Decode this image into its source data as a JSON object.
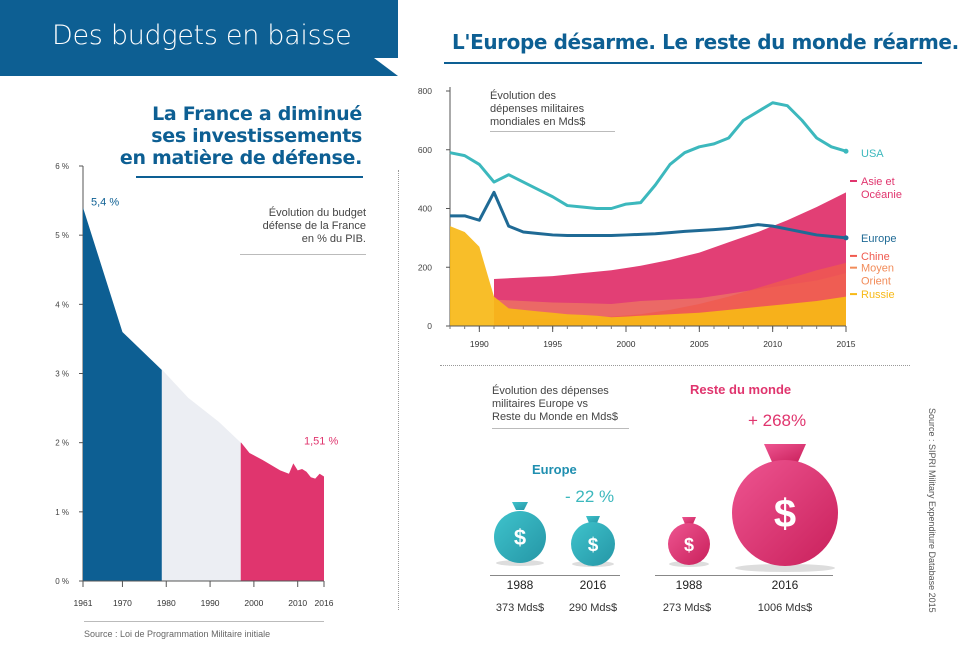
{
  "banner_title": "Des budgets en baisse",
  "headline_right": "L'Europe désarme. Le reste du monde réarme.",
  "headline_left": [
    "La France a diminué",
    "ses investissements",
    "en matière de défense."
  ],
  "colors": {
    "blue": "#0d5f93",
    "pink": "#e0356e",
    "usa": "#3cb8bd",
    "europe": "#1f6a95",
    "asia": "#e0356e",
    "china": "#f05a4f",
    "middle_east": "#f28c5a",
    "russia": "#f7b917"
  },
  "france_caption": [
    "Évolution du budget",
    "défense de la France",
    "en % du PIB."
  ],
  "france_source": "Source :  Loi de Programmation Militaire initiale",
  "world_caption": [
    "Évolution des",
    "dépenses militaires",
    "mondiales en Mds$"
  ],
  "europe_caption": [
    "Évolution des dépenses",
    "militaires Europe vs",
    "Reste du Monde en Mds$"
  ],
  "side_source": "Source : SIPRI Military Expenditure Database 2015",
  "bags": {
    "europe_title": "Europe",
    "rest_title": "Reste du monde",
    "europe_change": "- 22 %",
    "rest_change": "+ 268%",
    "items": [
      {
        "year": "1988",
        "value": "373 Mds$",
        "group": "europe"
      },
      {
        "year": "2016",
        "value": "290 Mds$",
        "group": "europe"
      },
      {
        "year": "1988",
        "value": "273 Mds$",
        "group": "rest"
      },
      {
        "year": "2016",
        "value": "1006 Mds$",
        "group": "rest"
      }
    ],
    "dollar": "$"
  },
  "chart_data": [
    {
      "type": "area",
      "title": "Évolution du budget défense de la France en % du PIB.",
      "ylim": [
        0,
        6
      ],
      "xlim": [
        1961,
        2016
      ],
      "yticks": [
        "0 %",
        "1 %",
        "2 %",
        "3 %",
        "4 %",
        "5 %",
        "6 %"
      ],
      "xticks": [
        "1961",
        "1970",
        "1980",
        "1990",
        "2000",
        "2010",
        "2016"
      ],
      "x": [
        1961,
        1970,
        1979,
        1979.1,
        1985,
        1992,
        1997,
        1997.1,
        1999,
        2002,
        2006,
        2008,
        2009,
        2010,
        2011,
        2012,
        2013,
        2014,
        2015,
        2016
      ],
      "y": [
        5.4,
        3.6,
        3.05,
        3.05,
        2.65,
        2.3,
        2.0,
        2.0,
        1.85,
        1.75,
        1.6,
        1.55,
        1.7,
        1.6,
        1.62,
        1.58,
        1.5,
        1.48,
        1.55,
        1.51
      ],
      "bands": [
        {
          "from": 1961,
          "to": 1979,
          "color": "#0d5f93"
        },
        {
          "from": 1979,
          "to": 1997,
          "color": "#eceef3"
        },
        {
          "from": 1997,
          "to": 2016,
          "color": "#e0356e"
        }
      ],
      "annotations": [
        {
          "text": "5,4 %",
          "x": 1961,
          "y": 5.4
        },
        {
          "text": "1,51 %",
          "x": 2016,
          "y": 1.51
        }
      ]
    },
    {
      "type": "line",
      "title": "Évolution des dépenses militaires mondiales en Mds$",
      "ylim": [
        0,
        800
      ],
      "xlim": [
        1988,
        2015
      ],
      "yticks": [
        "0",
        "200",
        "400",
        "600",
        "800"
      ],
      "xticks": [
        "1990",
        "1995",
        "2000",
        "2005",
        "2010",
        "2015"
      ],
      "series": [
        {
          "name": "USA",
          "kind": "line",
          "color": "#3cb8bd",
          "x": [
            1988,
            1989,
            1990,
            1991,
            1992,
            1993,
            1994,
            1995,
            1996,
            1997,
            1998,
            1999,
            2000,
            2001,
            2002,
            2003,
            2004,
            2005,
            2006,
            2007,
            2008,
            2009,
            2010,
            2011,
            2012,
            2013,
            2014,
            2015
          ],
          "y": [
            590,
            580,
            550,
            490,
            515,
            490,
            465,
            440,
            410,
            405,
            400,
            400,
            415,
            420,
            480,
            550,
            590,
            610,
            620,
            640,
            700,
            730,
            760,
            750,
            700,
            640,
            610,
            595
          ]
        },
        {
          "name": "Europe",
          "kind": "line",
          "color": "#1f6a95",
          "x": [
            1988,
            1989,
            1990,
            1991,
            1992,
            1993,
            1994,
            1995,
            1996,
            1997,
            1998,
            1999,
            2000,
            2001,
            2002,
            2003,
            2004,
            2005,
            2006,
            2007,
            2008,
            2009,
            2010,
            2011,
            2012,
            2013,
            2014,
            2015
          ],
          "y": [
            375,
            375,
            360,
            455,
            340,
            320,
            315,
            310,
            308,
            308,
            308,
            308,
            310,
            312,
            314,
            318,
            322,
            325,
            328,
            332,
            338,
            345,
            340,
            330,
            320,
            310,
            305,
            300
          ]
        },
        {
          "name": "Asie et Océanie",
          "kind": "area",
          "color": "#e0356e",
          "x": [
            1991,
            1993,
            1995,
            1997,
            1999,
            2001,
            2003,
            2005,
            2007,
            2009,
            2011,
            2013,
            2015
          ],
          "y": [
            160,
            165,
            170,
            180,
            190,
            205,
            225,
            250,
            285,
            320,
            360,
            405,
            455
          ]
        },
        {
          "name": "Chine",
          "kind": "area",
          "color": "#f05a4f",
          "x": [
            1991,
            1993,
            1995,
            1997,
            1999,
            2001,
            2003,
            2005,
            2007,
            2009,
            2011,
            2013,
            2015
          ],
          "y": [
            20,
            22,
            25,
            28,
            32,
            40,
            55,
            75,
            100,
            130,
            160,
            190,
            215
          ]
        },
        {
          "name": "Moyen Orient",
          "kind": "area",
          "color": "#f28c5a",
          "x": [
            1991,
            1993,
            1995,
            1997,
            1999,
            2001,
            2003,
            2005,
            2007,
            2009,
            2011,
            2013,
            2015
          ],
          "y": [
            90,
            85,
            80,
            78,
            75,
            85,
            90,
            95,
            110,
            125,
            140,
            155,
            180
          ]
        },
        {
          "name": "Russie",
          "kind": "area",
          "color": "#f7b917",
          "x": [
            1988,
            1989,
            1990,
            1991,
            1992,
            1993,
            1994,
            1995,
            1996,
            1997,
            1998,
            1999,
            2000,
            2001,
            2003,
            2005,
            2007,
            2009,
            2011,
            2013,
            2015
          ],
          "y": [
            340,
            320,
            270,
            100,
            60,
            55,
            50,
            45,
            40,
            38,
            35,
            30,
            32,
            35,
            40,
            45,
            55,
            65,
            75,
            85,
            100
          ]
        }
      ]
    }
  ]
}
